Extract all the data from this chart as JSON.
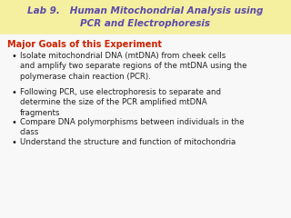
{
  "title_line1": "Lab 9.   Human Mitochondrial Analysis using",
  "title_line2": "PCR and Electrophoresis",
  "title_color": "#5b4aaa",
  "title_bg_color": "#f5f0a0",
  "title_fontsize": 7.5,
  "subtitle": "Major Goals of this Experiment",
  "subtitle_color": "#cc2200",
  "subtitle_fontsize": 7.0,
  "body_bg_color": "#f8f8f8",
  "bullet_color": "#222222",
  "bullet_fontsize": 6.2,
  "bullets": [
    "Isolate mitochondrial DNA (mtDNA) from cheek cells\nand amplify two separate regions of the mtDNA using the\npolymerase chain reaction (PCR).",
    "Following PCR, use electrophoresis to separate and\ndetermine the size of the PCR amplified mtDNA\nfragments",
    "Compare DNA polymorphisms between individuals in the\nclass",
    "Understand the structure and function of mitochondria"
  ]
}
